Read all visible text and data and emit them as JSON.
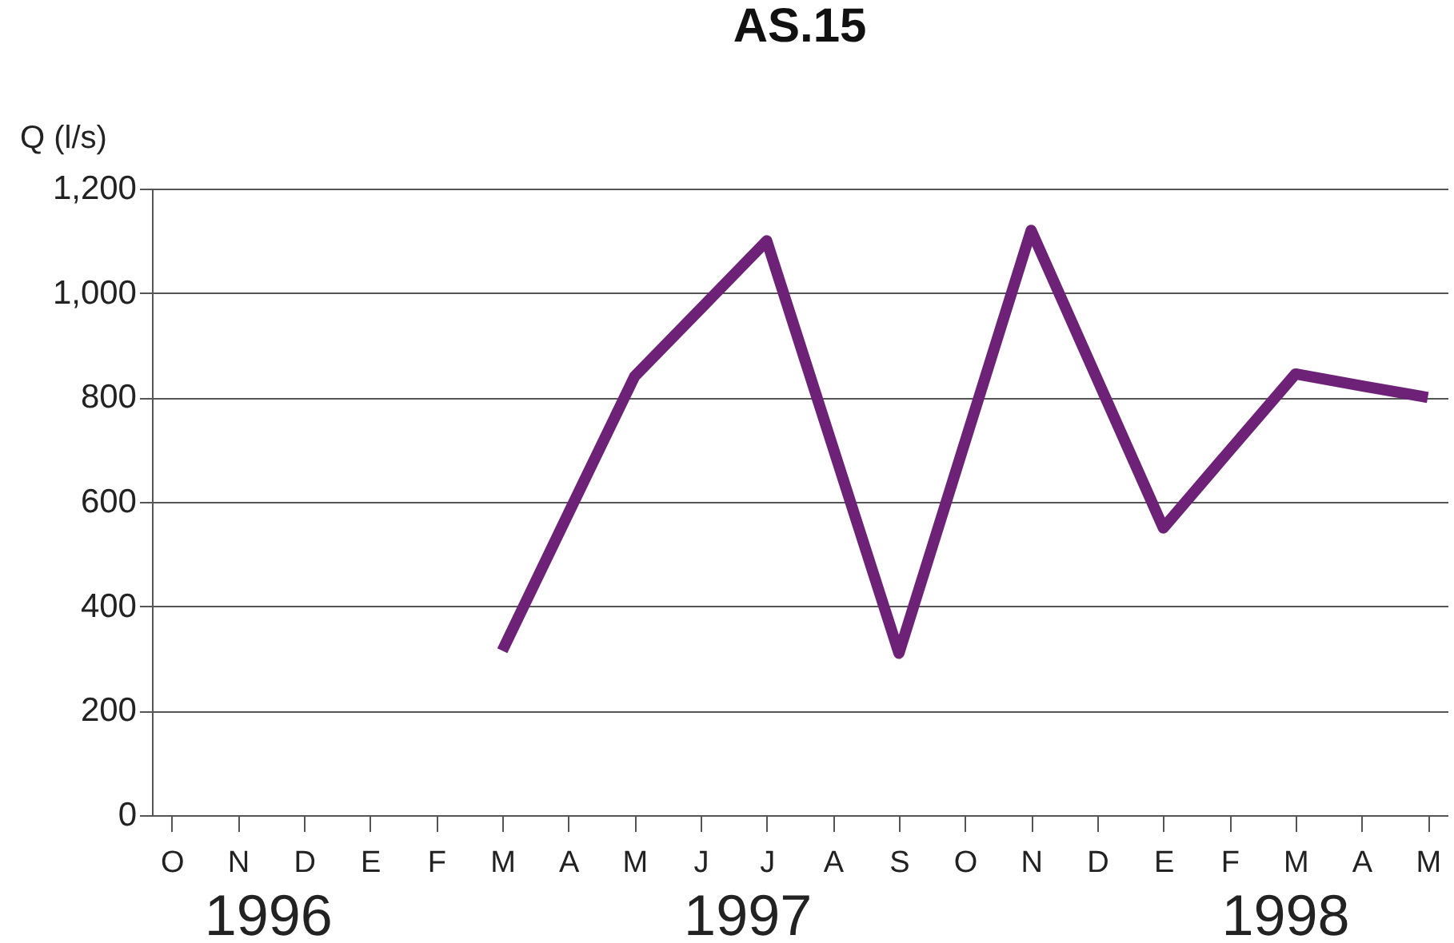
{
  "chart_data": {
    "type": "line",
    "title": "AS.15",
    "ylabel": "Q (l/s)",
    "categories": [
      "O",
      "N",
      "D",
      "E",
      "F",
      "M",
      "A",
      "M",
      "J",
      "J",
      "A",
      "S",
      "O",
      "N",
      "D",
      "E",
      "F",
      "M",
      "A",
      "M"
    ],
    "ylim": [
      0,
      1200
    ],
    "yticks": [
      0,
      200,
      400,
      600,
      800,
      {
        "value": 1000,
        "label": "1,000"
      },
      {
        "value": 1200,
        "label": "1,200"
      }
    ],
    "grid": "y",
    "series": [
      {
        "color": "#6e2277",
        "values": [
          null,
          null,
          null,
          null,
          null,
          315,
          578,
          840,
          970,
          1100,
          705,
          310,
          715,
          1120,
          835,
          550,
          698,
          845,
          822,
          800
        ]
      }
    ],
    "annotations": [
      "1996",
      "1997",
      "1998"
    ]
  }
}
